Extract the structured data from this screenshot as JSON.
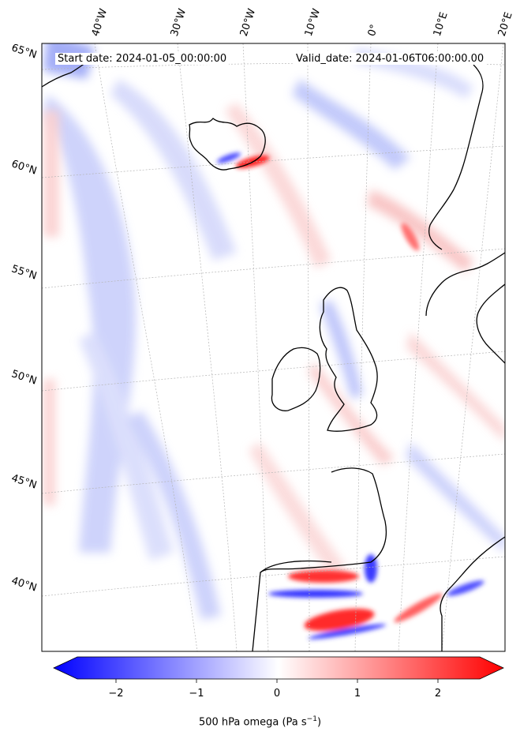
{
  "header": {
    "start_date": "Start date: 2024-01-05_00:00:00",
    "valid_date": "Valid_date: 2024-01-06T06:00:00.00"
  },
  "map": {
    "projection": "polar stereographic (North Atlantic)",
    "field": "500 hPa omega",
    "lon_labels": [
      "40°W",
      "30°W",
      "20°W",
      "10°W",
      "0°",
      "10°E",
      "20°E"
    ],
    "lat_labels": [
      "65°N",
      "60°N",
      "55°N",
      "50°N",
      "45°N",
      "40°N"
    ],
    "colors": {
      "ascent": "#0000ff",
      "descent": "#ff0000",
      "neutral": "#ffffff",
      "coast": "#000000",
      "grid": "#b0b0b0"
    }
  },
  "colorbar": {
    "label": "500 hPa omega (Pa s",
    "label_sup": "−1",
    "label_close": ")",
    "ticks": [
      "−2",
      "−1",
      "0",
      "1",
      "2"
    ],
    "range": [
      -2.6,
      2.6
    ],
    "extend": "both",
    "cmap": "bwr"
  }
}
